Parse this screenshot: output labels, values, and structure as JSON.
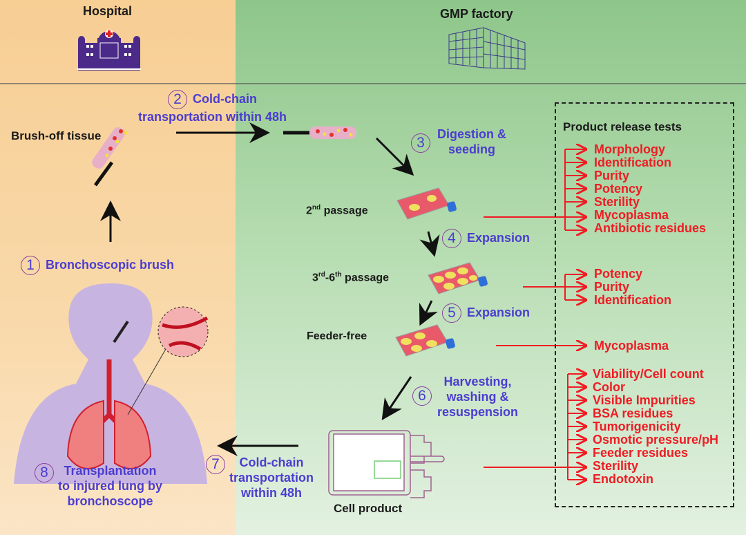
{
  "sections": {
    "hospital": "Hospital",
    "factory": "GMP factory"
  },
  "colors": {
    "hospital_bg": "#f7ce94",
    "factory_bg": "#8ec68a",
    "step_text": "#4b3dd0",
    "test_text": "#ef1c24"
  },
  "labels": {
    "brush_off": "Brush-off tissue",
    "passage2_pre": "2",
    "passage2_sup": "nd",
    "passage2_post": " passage",
    "passage36_a": "3",
    "passage36_a_sup": "rd",
    "passage36_b": "-6",
    "passage36_b_sup": "th",
    "passage36_post": " passage",
    "feeder_free": "Feeder-free",
    "cell_product": "Cell product"
  },
  "steps": [
    {
      "num": "1",
      "text": "Bronchoscopic brush"
    },
    {
      "num": "2",
      "text": "Cold-chain",
      "text2": "transportation within 48h"
    },
    {
      "num": "3",
      "text": "Digestion &",
      "text2": "seeding"
    },
    {
      "num": "4",
      "text": "Expansion"
    },
    {
      "num": "5",
      "text": "Expansion"
    },
    {
      "num": "6",
      "text": "Harvesting,",
      "text2": "washing &",
      "text3": "resuspension"
    },
    {
      "num": "7",
      "text": "Cold-chain",
      "text2": "transportation",
      "text3": "within 48h"
    },
    {
      "num": "8",
      "text": "Transplantation",
      "text2": "to injured lung by",
      "text3": "bronchoscope"
    }
  ],
  "tests": {
    "title": "Product release tests",
    "group1": [
      "Morphology",
      "Identification",
      "Purity",
      "Potency",
      "Sterility",
      "Mycoplasma",
      "Antibiotic residues"
    ],
    "group2": [
      "Potency",
      "Purity",
      "Identification"
    ],
    "group3": [
      "Mycoplasma"
    ],
    "group4": [
      "Viability/Cell count",
      "Color",
      "Visible Impurities",
      "BSA residues",
      "Tumorigenicity",
      "Osmotic pressure/pH",
      "Feeder  residues",
      "Sterility",
      "Endotoxin"
    ]
  }
}
